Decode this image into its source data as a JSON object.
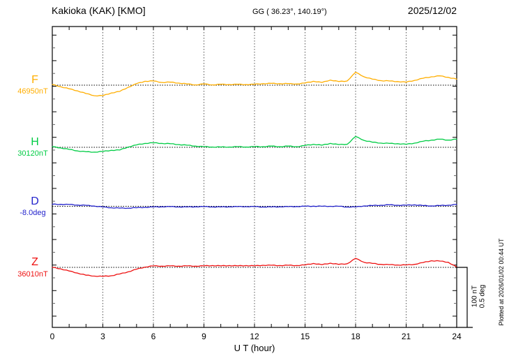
{
  "header": {
    "station": "Kakioka (KAK)  [KMO]",
    "coords": "GG ( 36.23°, 140.19°)",
    "date": "2025/12/02"
  },
  "axis": {
    "xlabel": "U T (hour)",
    "ticks": [
      "0",
      "3",
      "6",
      "9",
      "12",
      "15",
      "18",
      "21",
      "24"
    ]
  },
  "scalebar": {
    "line1": "100 nT",
    "line2": "0.5 deg"
  },
  "footer": {
    "plotted": "Plotted at 2026/01/02 00:44 UT"
  },
  "chart_data": {
    "type": "line",
    "title": "Kakioka (KAK) [KMO] magnetogram, 2025/12/02",
    "xlabel": "U T (hour)",
    "x_range": [
      0,
      24
    ],
    "x_step_hours": 0.5,
    "x_gridlines": [
      3,
      6,
      9,
      12,
      15,
      18,
      21
    ],
    "grid": "dotted vertical at 3h intervals, dotted horizontal baseline per trace",
    "legend_position": "left margin, one colored label per trace",
    "scale": {
      "nT_per_div": 100,
      "deg_per_div": 0.5
    },
    "series": [
      {
        "name": "F",
        "baseline_label": "46950nT",
        "base_value": 46950,
        "unit": "nT",
        "color": "#ffae00",
        "delta": [
          1,
          -2.5,
          -6,
          -9.5,
          -14,
          -17.5,
          -17.5,
          -13,
          -10.5,
          -3.5,
          2.5,
          6.5,
          7,
          4.5,
          5,
          3.5,
          2,
          0.5,
          2,
          0.5,
          1.5,
          1,
          1.5,
          1,
          1.5,
          2.5,
          3,
          2.5,
          2.5,
          2,
          3.5,
          6.5,
          4.5,
          8.5,
          6,
          7,
          21.5,
          14,
          10,
          7.5,
          7,
          6,
          5,
          8,
          11.5,
          14,
          15.5,
          13,
          10
        ]
      },
      {
        "name": "H",
        "baseline_label": "30120nT",
        "base_value": 30120,
        "unit": "nT",
        "color": "#00cc44",
        "delta": [
          1,
          -1,
          -3.5,
          -6,
          -7.5,
          -8,
          -7,
          -5,
          -4.5,
          0.5,
          4,
          6.5,
          7.5,
          6.5,
          6,
          4.5,
          3.5,
          2,
          1,
          0.5,
          0.5,
          0.5,
          1,
          0.5,
          1,
          1,
          2,
          1,
          2,
          1,
          3,
          5,
          3.5,
          6.5,
          4.5,
          5,
          18,
          11.5,
          8.5,
          7,
          6.5,
          6,
          5,
          7,
          10,
          12,
          13.5,
          12,
          13.5
        ]
      },
      {
        "name": "D",
        "baseline_label": "-8.0deg",
        "base_value": -8.0,
        "unit": "deg",
        "color": "#2323cc",
        "delta": [
          0.017,
          0.016,
          0.015,
          0.01,
          0.008,
          0.002,
          -0.006,
          -0.012,
          -0.015,
          -0.015,
          -0.012,
          -0.009,
          -0.006,
          -0.004,
          -0.003,
          -0.005,
          -0.006,
          -0.004,
          -0.003,
          -0.005,
          -0.006,
          -0.004,
          -0.003,
          -0.003,
          -0.003,
          -0.006,
          -0.006,
          -0.004,
          -0.003,
          -0.002,
          0,
          0.001,
          0,
          0,
          0,
          -0.006,
          -0.006,
          0.003,
          0.006,
          0.009,
          0.012,
          0.009,
          0.009,
          0.012,
          0.006,
          0.003,
          0.006,
          0.009,
          0.015
        ]
      },
      {
        "name": "Z",
        "baseline_label": "36010nT",
        "base_value": 36010,
        "unit": "nT",
        "color": "#ee1111",
        "delta": [
          0,
          -2.5,
          -6,
          -9.5,
          -13,
          -14.5,
          -15,
          -14,
          -11,
          -7.5,
          -3,
          0.5,
          2.5,
          2,
          2.5,
          2,
          2.5,
          2,
          2.5,
          3,
          2.5,
          3,
          2.5,
          3,
          2.5,
          3.5,
          3.5,
          3,
          3.5,
          3,
          4,
          6.5,
          4.5,
          7,
          5,
          6,
          15,
          8.5,
          6.5,
          5,
          4.5,
          4,
          4,
          5,
          8,
          11,
          10.5,
          8.5,
          0.5
        ]
      }
    ]
  }
}
